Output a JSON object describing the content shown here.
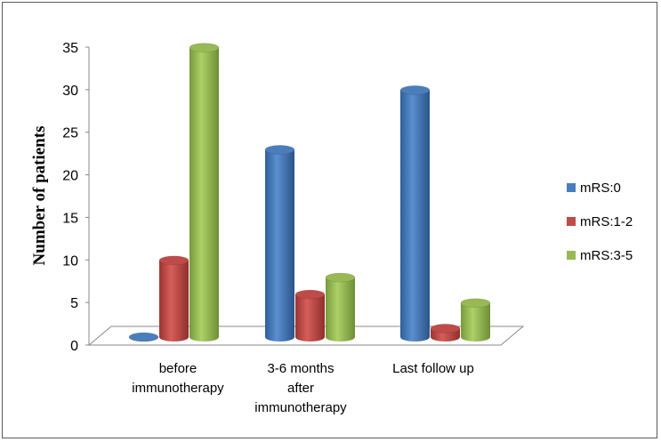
{
  "chart_data": {
    "type": "bar",
    "style": "3d-cylinder",
    "title": "",
    "xlabel": "",
    "ylabel": "Number of patients",
    "ylim": [
      0,
      35
    ],
    "yticks": [
      "0",
      "5",
      "10",
      "15",
      "20",
      "25",
      "30",
      "35"
    ],
    "categories": [
      [
        "before",
        "immunotherapy"
      ],
      [
        "3-6 months",
        "after",
        "immunotherapy"
      ],
      [
        "Last follow up"
      ]
    ],
    "series": [
      {
        "name": "mRS:0",
        "values": [
          0,
          22,
          29
        ],
        "color": "#4a7ebb"
      },
      {
        "name": "mRS:1-2",
        "values": [
          9,
          5,
          1
        ],
        "color": "#be4b48"
      },
      {
        "name": "mRS:3-5",
        "values": [
          34,
          7,
          4
        ],
        "color": "#98b954"
      }
    ],
    "grid": false,
    "legend": "right"
  }
}
